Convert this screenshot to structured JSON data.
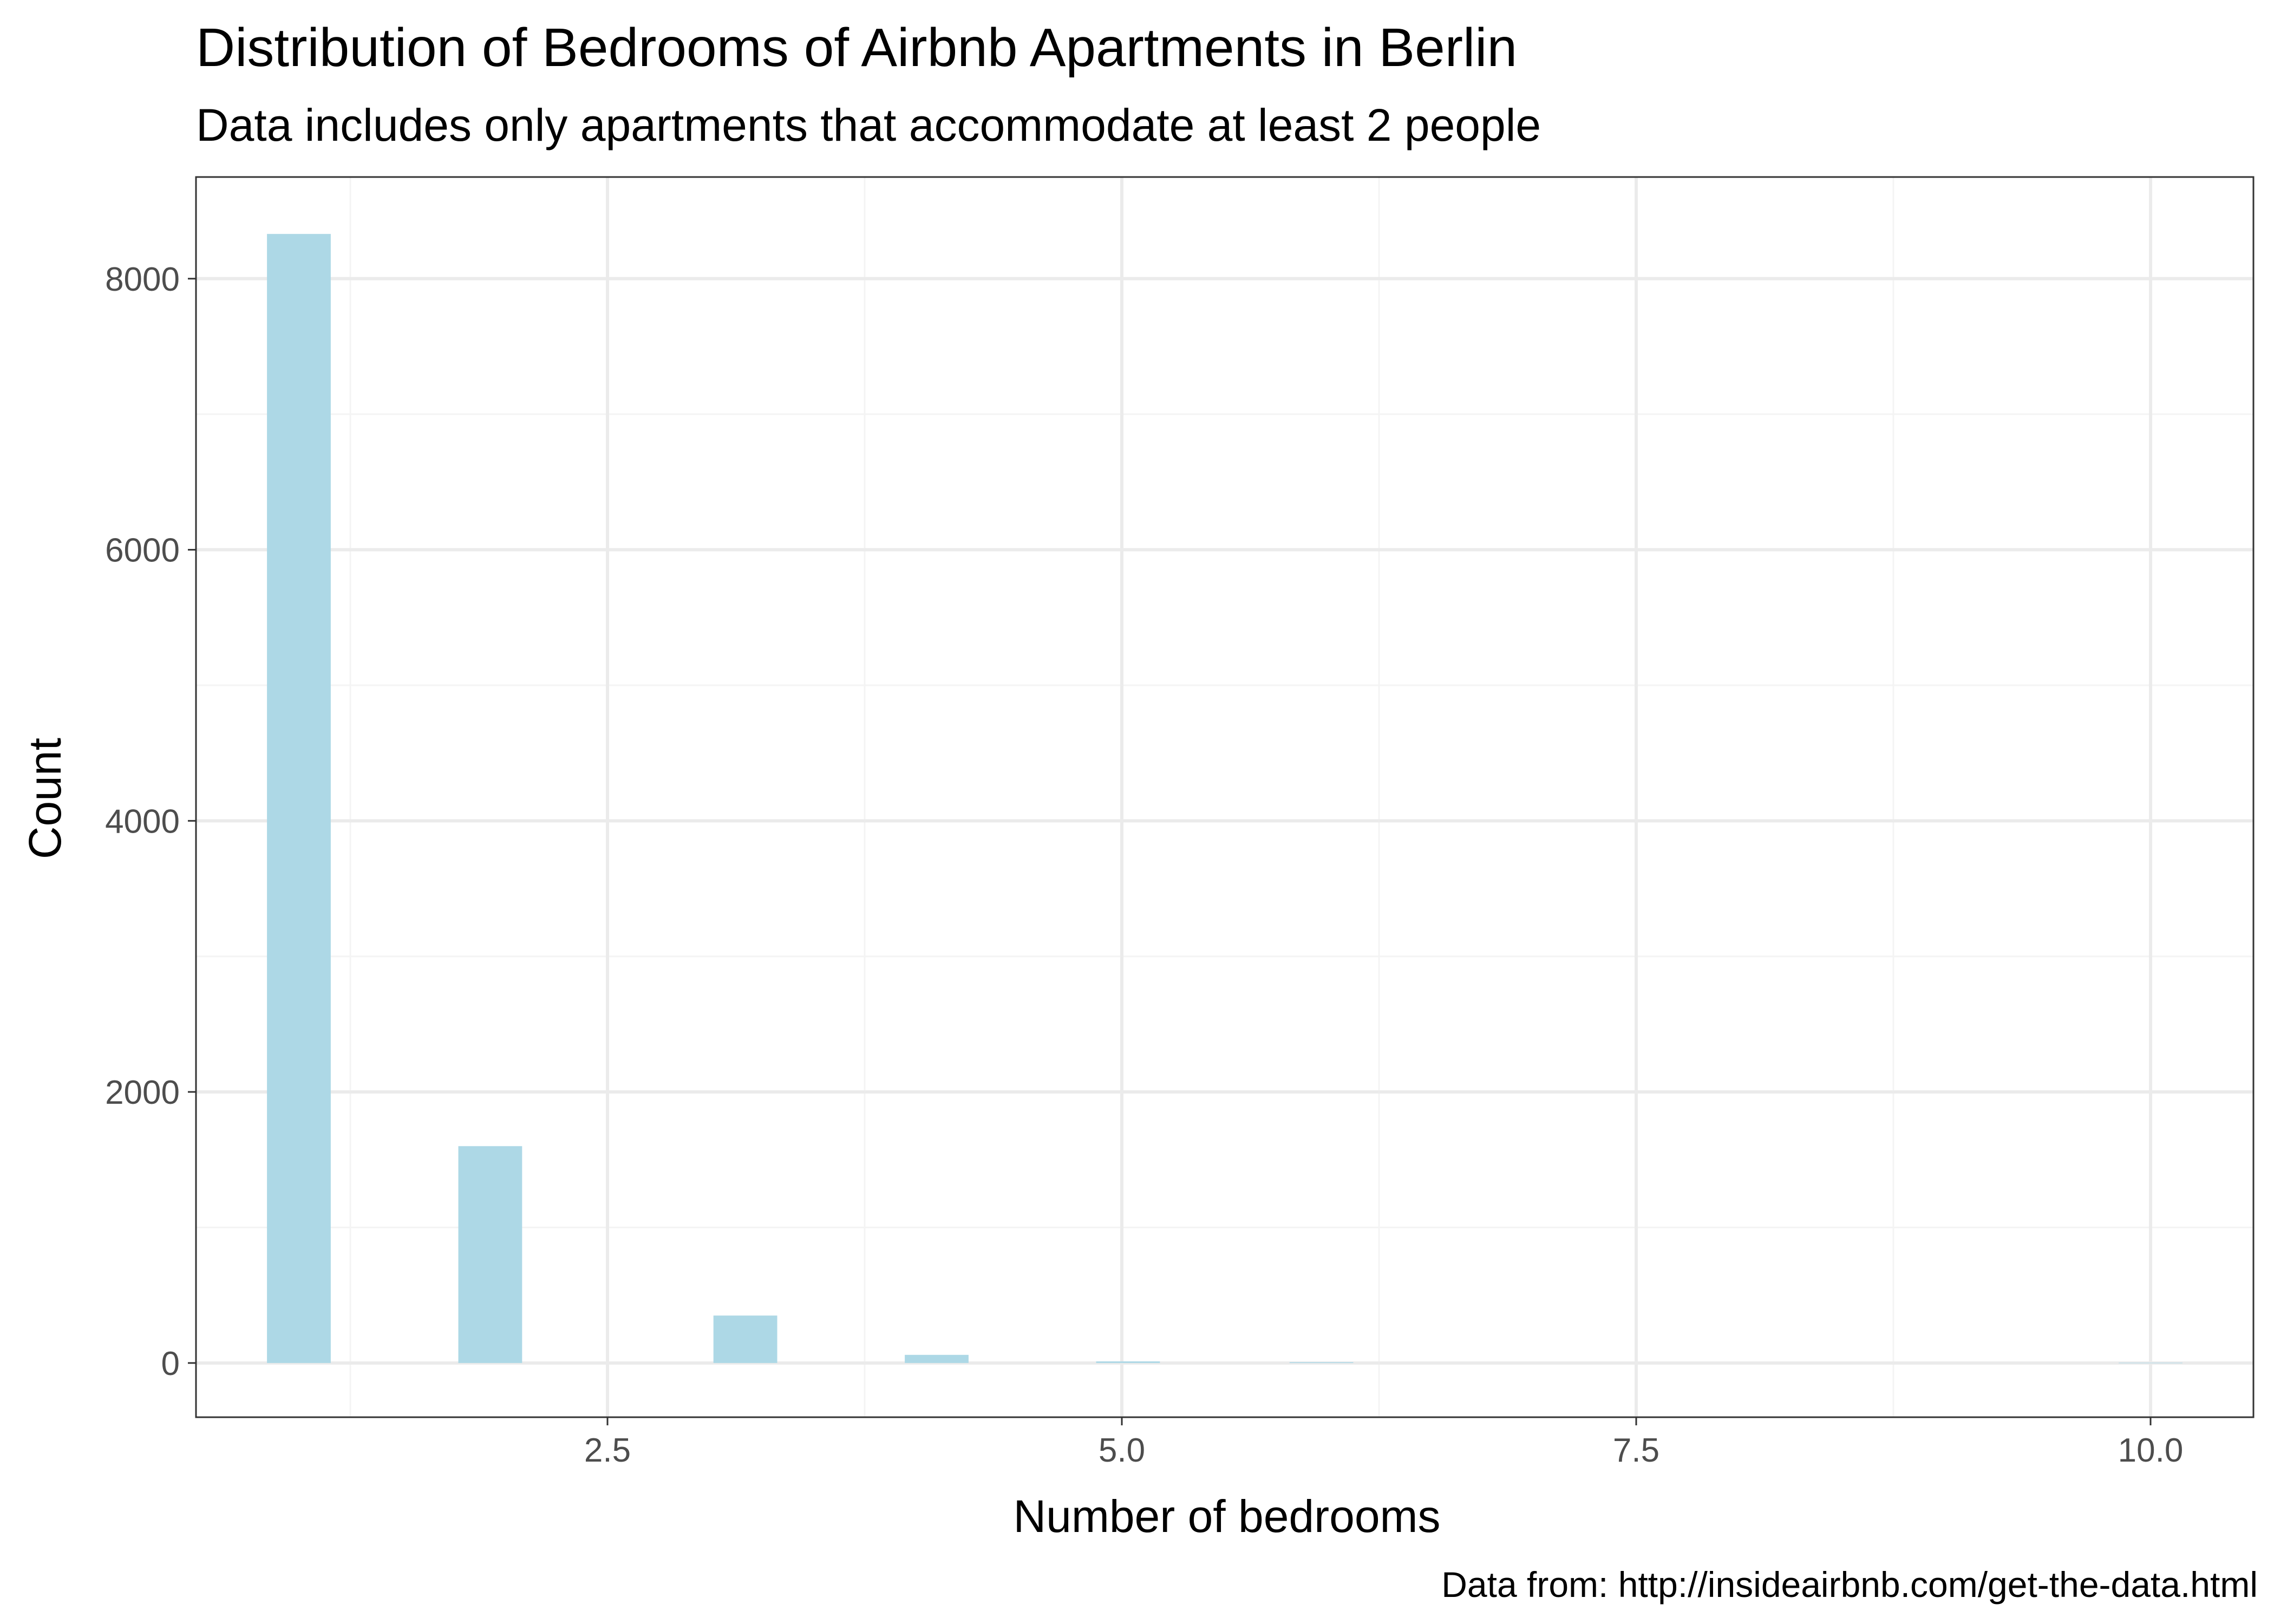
{
  "chart_data": {
    "type": "bar",
    "title": "Distribution of Bedrooms of Airbnb Apartments in Berlin",
    "subtitle": "Data includes only apartments that accommodate at least 2 people",
    "xlabel": "Number of bedrooms",
    "ylabel": "Count",
    "caption": "Data from: http://insideairbnb.com/get-the-data.html",
    "xlim": [
      0.5,
      10.5
    ],
    "ylim": [
      -400,
      8750
    ],
    "bin_width": 0.31,
    "x_ticks": [
      {
        "value": 2.5,
        "label": "2.5"
      },
      {
        "value": 5.0,
        "label": "5.0"
      },
      {
        "value": 7.5,
        "label": "7.5"
      },
      {
        "value": 10.0,
        "label": "10.0"
      }
    ],
    "x_minor_ticks": [
      1.25,
      3.75,
      6.25,
      8.75
    ],
    "y_ticks": [
      {
        "value": 0,
        "label": "0"
      },
      {
        "value": 2000,
        "label": "2000"
      },
      {
        "value": 4000,
        "label": "4000"
      },
      {
        "value": 6000,
        "label": "6000"
      },
      {
        "value": 8000,
        "label": "8000"
      }
    ],
    "y_minor_ticks": [
      1000,
      3000,
      5000,
      7000
    ],
    "bars": [
      {
        "x": 1.0,
        "count": 8330
      },
      {
        "x": 1.93,
        "count": 1600
      },
      {
        "x": 3.17,
        "count": 350
      },
      {
        "x": 4.1,
        "count": 60
      },
      {
        "x": 5.03,
        "count": 12
      },
      {
        "x": 5.97,
        "count": 6
      },
      {
        "x": 10.0,
        "count": 2
      }
    ],
    "grid": true,
    "colors": {
      "bar": "#add8e6",
      "grid_major": "#ebebeb",
      "grid_minor": "#f4f4f4",
      "panel_border": "#333333",
      "tick_label": "#4d4d4d"
    }
  }
}
